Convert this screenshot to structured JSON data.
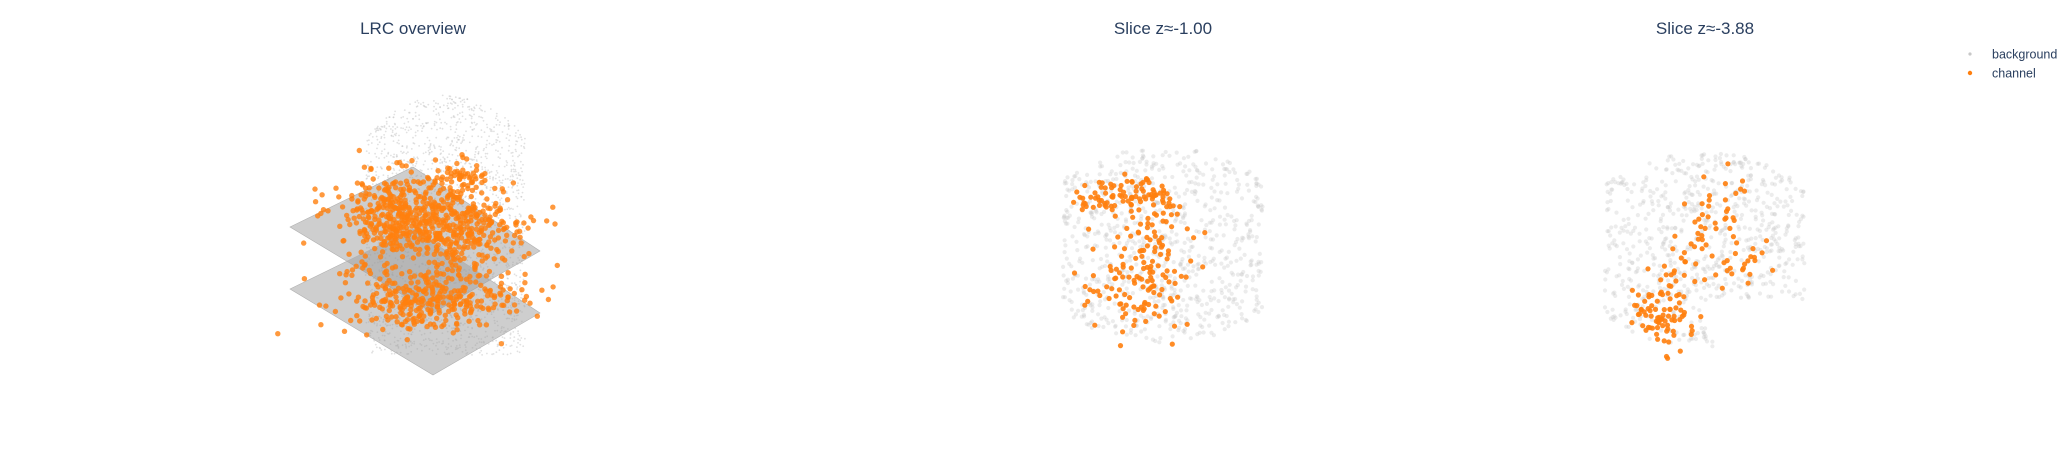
{
  "chart_data": [
    {
      "type": "scatter3d",
      "title": "LRC overview",
      "series": [
        {
          "name": "background",
          "color": "#c8c8c8"
        },
        {
          "name": "channel",
          "color": "#ff7f0e"
        }
      ],
      "planes_z": [
        -1.0,
        -3.88
      ]
    },
    {
      "type": "scatter",
      "title": "Slice z≈-1.00",
      "series": [
        {
          "name": "background",
          "color": "#c8c8c8"
        },
        {
          "name": "channel",
          "color": "#ff7f0e"
        }
      ]
    },
    {
      "type": "scatter",
      "title": "Slice z≈-3.88",
      "series": [
        {
          "name": "background",
          "color": "#c8c8c8"
        },
        {
          "name": "channel",
          "color": "#ff7f0e"
        }
      ]
    }
  ],
  "legend": {
    "position": "top-right",
    "items": [
      {
        "label": "background",
        "color": "#c8c8c8"
      },
      {
        "label": "channel",
        "color": "#ff7f0e"
      }
    ]
  }
}
